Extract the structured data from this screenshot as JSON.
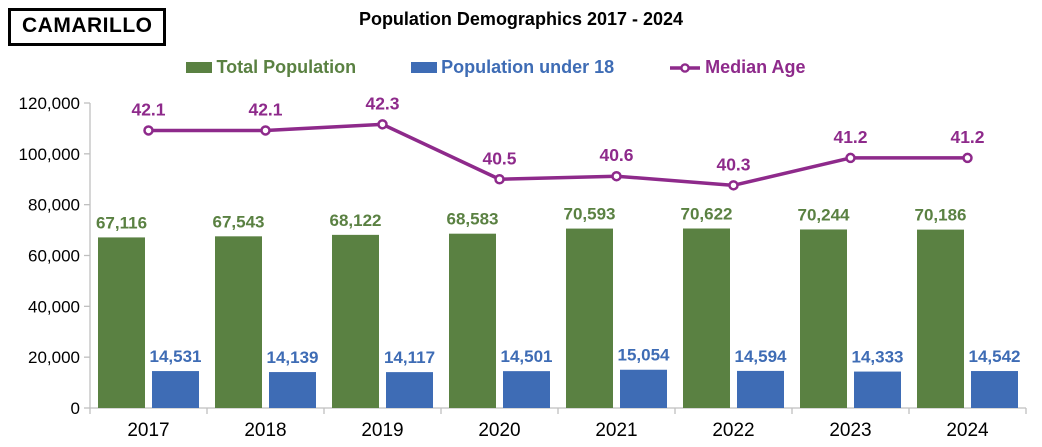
{
  "header": {
    "city_label": "CAMARILLO",
    "title": "Population Demographics 2017 - 2024"
  },
  "legend": {
    "items": [
      {
        "label": "Total Population",
        "color": "#5A8142",
        "marker": "square"
      },
      {
        "label": "Population under 18",
        "color": "#3E6CB5",
        "marker": "square"
      },
      {
        "label": "Median Age",
        "color": "#8E2A8B",
        "marker": "line-circle"
      }
    ]
  },
  "chart_data": {
    "type": "bar",
    "title": "Population Demographics 2017 - 2024",
    "categories": [
      "2017",
      "2018",
      "2019",
      "2020",
      "2021",
      "2022",
      "2023",
      "2024"
    ],
    "series": [
      {
        "name": "Total Population",
        "type": "bar",
        "color": "#5A8142",
        "values": [
          67116,
          67543,
          68122,
          68583,
          70593,
          70622,
          70244,
          70186
        ],
        "labels": [
          "67,116",
          "67,543",
          "68,122",
          "68,583",
          "70,593",
          "70,622",
          "70,244",
          "70,186"
        ]
      },
      {
        "name": "Population under 18",
        "type": "bar",
        "color": "#3E6CB5",
        "values": [
          14531,
          14139,
          14117,
          14501,
          15054,
          14594,
          14333,
          14542
        ],
        "labels": [
          "14,531",
          "14,139",
          "14,117",
          "14,501",
          "15,054",
          "14,594",
          "14,333",
          "14,542"
        ]
      },
      {
        "name": "Median Age",
        "type": "line",
        "color": "#8E2A8B",
        "axis": "secondary",
        "values": [
          42.1,
          42.1,
          42.3,
          40.5,
          40.6,
          40.3,
          41.2,
          41.2
        ],
        "labels": [
          "42.1",
          "42.1",
          "42.3",
          "40.5",
          "40.6",
          "40.3",
          "41.2",
          "41.2"
        ]
      }
    ],
    "primary_axis": {
      "min": 0,
      "max": 120000,
      "tick_step": 20000,
      "tick_labels": [
        "0",
        "20,000",
        "40,000",
        "60,000",
        "80,000",
        "100,000",
        "120,000"
      ]
    },
    "secondary_axis": {
      "min": 33,
      "max": 43,
      "visible": false
    },
    "grid": false,
    "legend_position": "top",
    "xlabel": "",
    "ylabel": ""
  },
  "colors": {
    "total_population": "#5A8142",
    "population_under_18": "#3E6CB5",
    "median_age": "#8E2A8B",
    "axis_line": "#BFBFBF",
    "text": "#000000",
    "background": "#FFFFFF"
  }
}
